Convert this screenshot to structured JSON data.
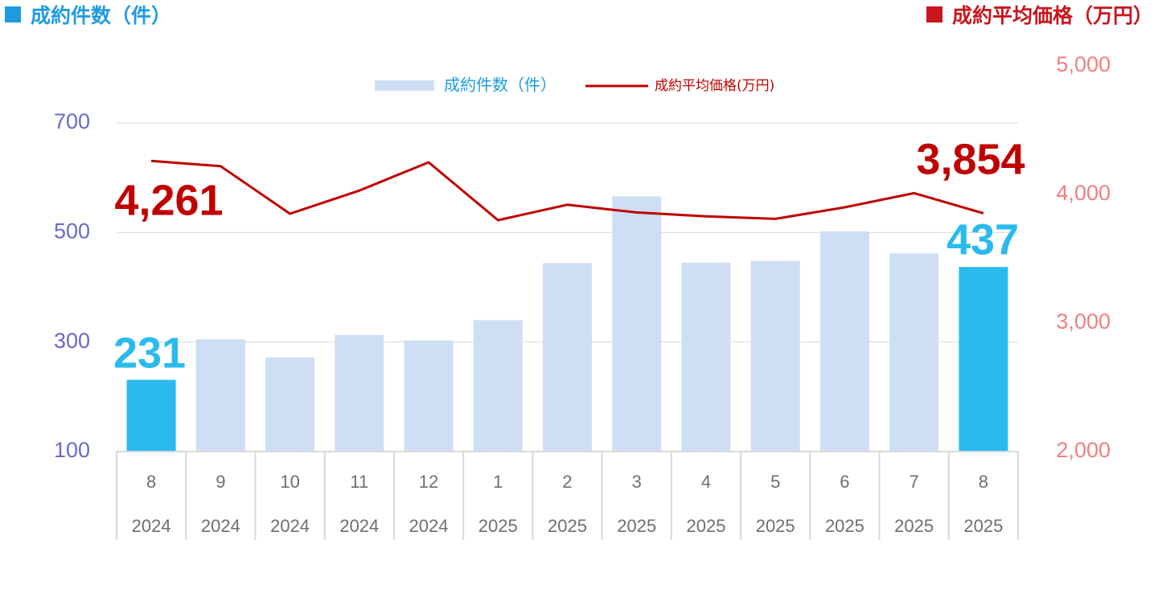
{
  "header": {
    "left_title": "成約件数（件）",
    "right_title": "成約平均価格（万円）"
  },
  "colors": {
    "left_accent": "#1e9be0",
    "right_accent": "#c8161d",
    "bar_default": "#cfdff3",
    "bar_highlight": "#29bbee",
    "line": "#c00000",
    "left_axis_text": "#6a6ac8",
    "right_axis_text": "#f08080",
    "grid": "#d9d9d9",
    "category_text": "#6f6f6f"
  },
  "chart_data": {
    "type": "bar+line",
    "legend": {
      "position": "top-center",
      "entries": [
        "成約件数（件）",
        "成約平均価格(万円)"
      ]
    },
    "categories": [
      {
        "month": "8",
        "year": "2024"
      },
      {
        "month": "9",
        "year": "2024"
      },
      {
        "month": "10",
        "year": "2024"
      },
      {
        "month": "11",
        "year": "2024"
      },
      {
        "month": "12",
        "year": "2024"
      },
      {
        "month": "1",
        "year": "2025"
      },
      {
        "month": "2",
        "year": "2025"
      },
      {
        "month": "3",
        "year": "2025"
      },
      {
        "month": "4",
        "year": "2025"
      },
      {
        "month": "5",
        "year": "2025"
      },
      {
        "month": "6",
        "year": "2025"
      },
      {
        "month": "7",
        "year": "2025"
      },
      {
        "month": "8",
        "year": "2025"
      }
    ],
    "series": [
      {
        "name": "成約件数（件）",
        "type": "bar",
        "axis": "left",
        "values": [
          231,
          305,
          272,
          313,
          303,
          340,
          444,
          566,
          445,
          448,
          502,
          462,
          437
        ],
        "highlight": [
          0,
          12
        ]
      },
      {
        "name": "成約平均価格(万円)",
        "type": "line",
        "axis": "right",
        "values": [
          4261,
          4220,
          3850,
          4030,
          4250,
          3800,
          3920,
          3860,
          3830,
          3810,
          3900,
          4010,
          3854
        ]
      }
    ],
    "data_labels": [
      {
        "text": "231",
        "series": 0,
        "index": 0
      },
      {
        "text": "437",
        "series": 0,
        "index": 12
      },
      {
        "text": "4,261",
        "series": 1,
        "index": 0
      },
      {
        "text": "3,854",
        "series": 1,
        "index": 12
      }
    ],
    "left_axis": {
      "ticks": [
        "100",
        "300",
        "500",
        "700"
      ],
      "range": [
        100,
        700
      ]
    },
    "right_axis": {
      "ticks": [
        "2,000",
        "3,000",
        "4,000",
        "5,000"
      ],
      "range": [
        2000,
        5000
      ]
    },
    "grid": true
  }
}
